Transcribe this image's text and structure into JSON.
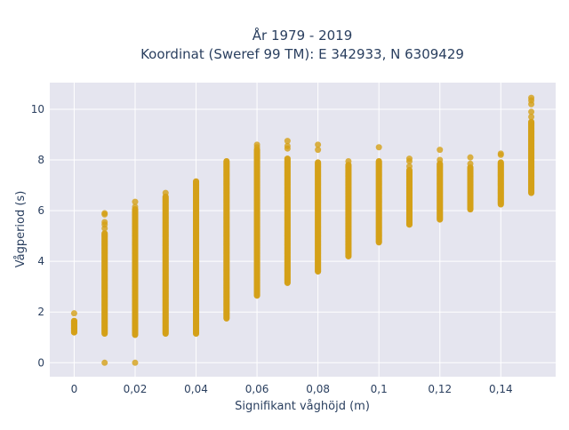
{
  "chart_data": {
    "type": "scatter",
    "title_lines": [
      "År 1979 - 2019",
      "Koordinat (Sweref 99 TM): E 342933, N 6309429"
    ],
    "xlabel": "Signifikant våghöjd (m)",
    "ylabel": "Vågperiod (s)",
    "xlim": [
      -0.008,
      0.158
    ],
    "ylim": [
      -0.55,
      11.05
    ],
    "x_ticks": [
      {
        "value": 0,
        "label": "0"
      },
      {
        "value": 0.02,
        "label": "0,02"
      },
      {
        "value": 0.04,
        "label": "0,04"
      },
      {
        "value": 0.06,
        "label": "0,06"
      },
      {
        "value": 0.08,
        "label": "0,08"
      },
      {
        "value": 0.1,
        "label": "0,1"
      },
      {
        "value": 0.12,
        "label": "0,12"
      },
      {
        "value": 0.14,
        "label": "0,14"
      }
    ],
    "y_ticks": [
      {
        "value": 0,
        "label": "0"
      },
      {
        "value": 2,
        "label": "2"
      },
      {
        "value": 4,
        "label": "4"
      },
      {
        "value": 6,
        "label": "6"
      },
      {
        "value": 8,
        "label": "8"
      },
      {
        "value": 10,
        "label": "10"
      }
    ],
    "grid": true,
    "marker_color": "#d4a017",
    "plot_bg": "#e5e5ef",
    "grid_color": "#ffffff",
    "series": [
      {
        "columns": [
          {
            "x": 0,
            "y_min": 1.2,
            "y_max": 1.65,
            "outliers": [
              1.2,
              1.35,
              1.45,
              1.55,
              1.65,
              1.95
            ]
          },
          {
            "x": 0.01,
            "y_min": 1.15,
            "y_max": 5.1,
            "outliers": [
              0,
              5.3,
              5.45,
              5.55,
              5.85,
              5.9
            ]
          },
          {
            "x": 0.02,
            "y_min": 1.1,
            "y_max": 6.05,
            "outliers": [
              0,
              6.15,
              6.35
            ]
          },
          {
            "x": 0.03,
            "y_min": 1.15,
            "y_max": 6.55,
            "outliers": [
              6.7
            ]
          },
          {
            "x": 0.04,
            "y_min": 1.15,
            "y_max": 7.15,
            "outliers": []
          },
          {
            "x": 0.05,
            "y_min": 1.75,
            "y_max": 7.95,
            "outliers": []
          },
          {
            "x": 0.06,
            "y_min": 2.65,
            "y_max": 8.4,
            "outliers": [
              8.5,
              8.6
            ]
          },
          {
            "x": 0.07,
            "y_min": 3.15,
            "y_max": 8.05,
            "outliers": [
              8.45,
              8.55,
              8.75
            ]
          },
          {
            "x": 0.08,
            "y_min": 3.6,
            "y_max": 7.9,
            "outliers": [
              8.4,
              8.6
            ]
          },
          {
            "x": 0.09,
            "y_min": 4.2,
            "y_max": 7.8,
            "outliers": [
              7.95
            ]
          },
          {
            "x": 0.1,
            "y_min": 4.75,
            "y_max": 7.95,
            "outliers": [
              8.5
            ]
          },
          {
            "x": 0.11,
            "y_min": 5.45,
            "y_max": 7.6,
            "outliers": [
              7.75,
              7.95,
              8.05
            ]
          },
          {
            "x": 0.12,
            "y_min": 5.65,
            "y_max": 7.85,
            "outliers": [
              8.0,
              8.4
            ]
          },
          {
            "x": 0.13,
            "y_min": 6.05,
            "y_max": 7.7,
            "outliers": [
              7.85,
              8.1
            ]
          },
          {
            "x": 0.14,
            "y_min": 6.25,
            "y_max": 7.9,
            "outliers": [
              8.2,
              8.25
            ]
          },
          {
            "x": 0.15,
            "y_min": 6.7,
            "y_max": 9.5,
            "outliers": [
              9.7,
              9.9,
              10.2,
              10.35,
              10.45
            ]
          }
        ]
      }
    ]
  }
}
